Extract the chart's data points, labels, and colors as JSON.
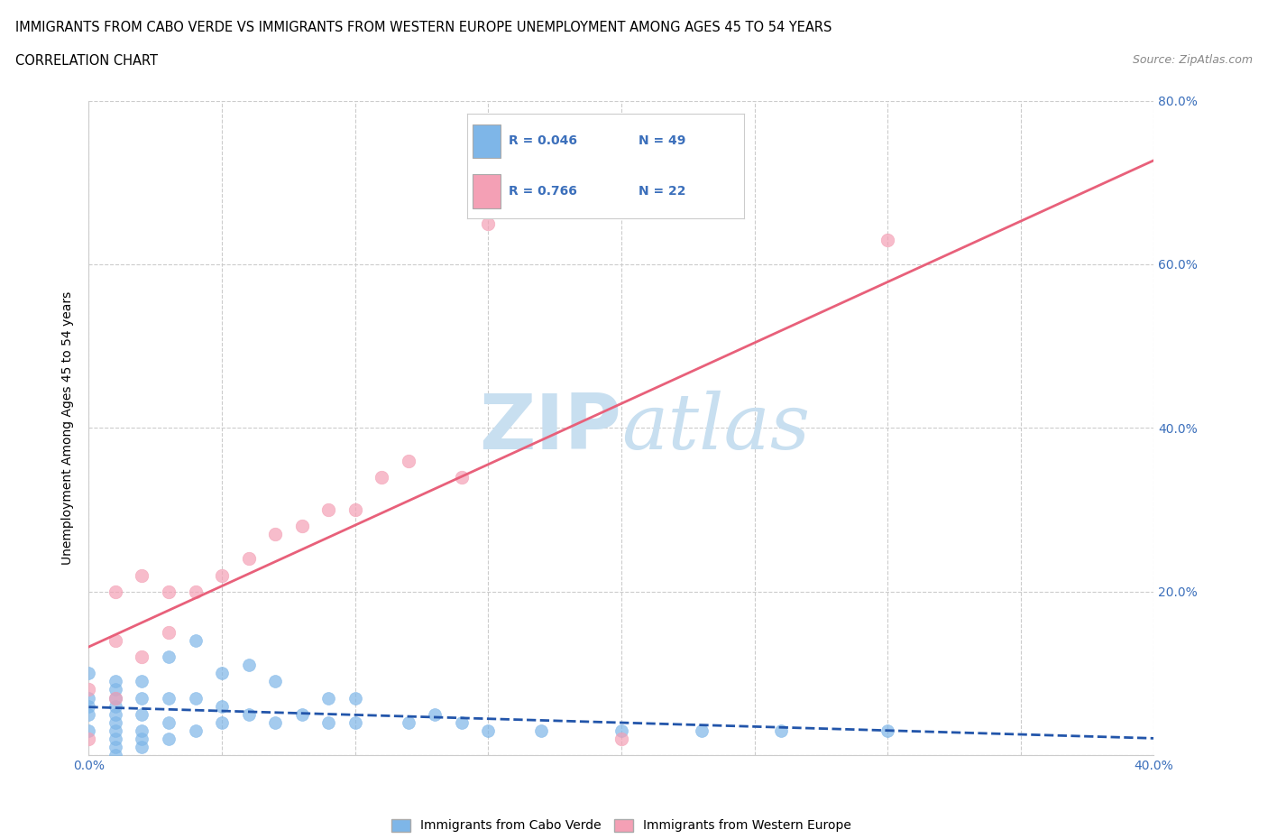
{
  "title_line1": "IMMIGRANTS FROM CABO VERDE VS IMMIGRANTS FROM WESTERN EUROPE UNEMPLOYMENT AMONG AGES 45 TO 54 YEARS",
  "title_line2": "CORRELATION CHART",
  "source_text": "Source: ZipAtlas.com",
  "ylabel_text": "Unemployment Among Ages 45 to 54 years",
  "xlim": [
    0.0,
    0.4
  ],
  "ylim": [
    0.0,
    0.8
  ],
  "xtick_vals": [
    0.0,
    0.05,
    0.1,
    0.15,
    0.2,
    0.25,
    0.3,
    0.35,
    0.4
  ],
  "xtick_labels": [
    "0.0%",
    "",
    "",
    "",
    "",
    "",
    "",
    "",
    "40.0%"
  ],
  "ytick_vals": [
    0.0,
    0.2,
    0.4,
    0.6,
    0.8
  ],
  "ytick_labels": [
    "",
    "20.0%",
    "40.0%",
    "60.0%",
    "80.0%"
  ],
  "cabo_verde_color": "#7EB6E8",
  "western_europe_color": "#F4A0B5",
  "cabo_verde_line_color": "#2255AA",
  "western_europe_line_color": "#E8607A",
  "grid_color": "#CCCCCC",
  "watermark_color": "#C8DFF0",
  "legend_R_cabo": "0.046",
  "legend_N_cabo": "49",
  "legend_R_western": "0.766",
  "legend_N_western": "22",
  "legend_text_color": "#3B6FBB",
  "cabo_verde_x": [
    0.0,
    0.0,
    0.0,
    0.0,
    0.0,
    0.01,
    0.01,
    0.01,
    0.01,
    0.01,
    0.01,
    0.01,
    0.01,
    0.01,
    0.01,
    0.02,
    0.02,
    0.02,
    0.02,
    0.02,
    0.02,
    0.03,
    0.03,
    0.03,
    0.03,
    0.04,
    0.04,
    0.04,
    0.05,
    0.05,
    0.05,
    0.06,
    0.06,
    0.07,
    0.07,
    0.08,
    0.09,
    0.09,
    0.1,
    0.1,
    0.12,
    0.13,
    0.14,
    0.15,
    0.17,
    0.2,
    0.23,
    0.26,
    0.3
  ],
  "cabo_verde_y": [
    0.03,
    0.05,
    0.06,
    0.07,
    0.1,
    0.0,
    0.01,
    0.02,
    0.03,
    0.04,
    0.05,
    0.06,
    0.07,
    0.08,
    0.09,
    0.01,
    0.02,
    0.03,
    0.05,
    0.07,
    0.09,
    0.02,
    0.04,
    0.07,
    0.12,
    0.03,
    0.07,
    0.14,
    0.04,
    0.06,
    0.1,
    0.05,
    0.11,
    0.04,
    0.09,
    0.05,
    0.04,
    0.07,
    0.04,
    0.07,
    0.04,
    0.05,
    0.04,
    0.03,
    0.03,
    0.03,
    0.03,
    0.03,
    0.03
  ],
  "western_europe_x": [
    0.0,
    0.0,
    0.01,
    0.01,
    0.01,
    0.02,
    0.02,
    0.03,
    0.03,
    0.04,
    0.05,
    0.06,
    0.07,
    0.08,
    0.09,
    0.1,
    0.11,
    0.12,
    0.14,
    0.15,
    0.2,
    0.3
  ],
  "western_europe_y": [
    0.02,
    0.08,
    0.07,
    0.14,
    0.2,
    0.12,
    0.22,
    0.15,
    0.2,
    0.2,
    0.22,
    0.24,
    0.27,
    0.28,
    0.3,
    0.3,
    0.34,
    0.36,
    0.34,
    0.65,
    0.02,
    0.63
  ]
}
